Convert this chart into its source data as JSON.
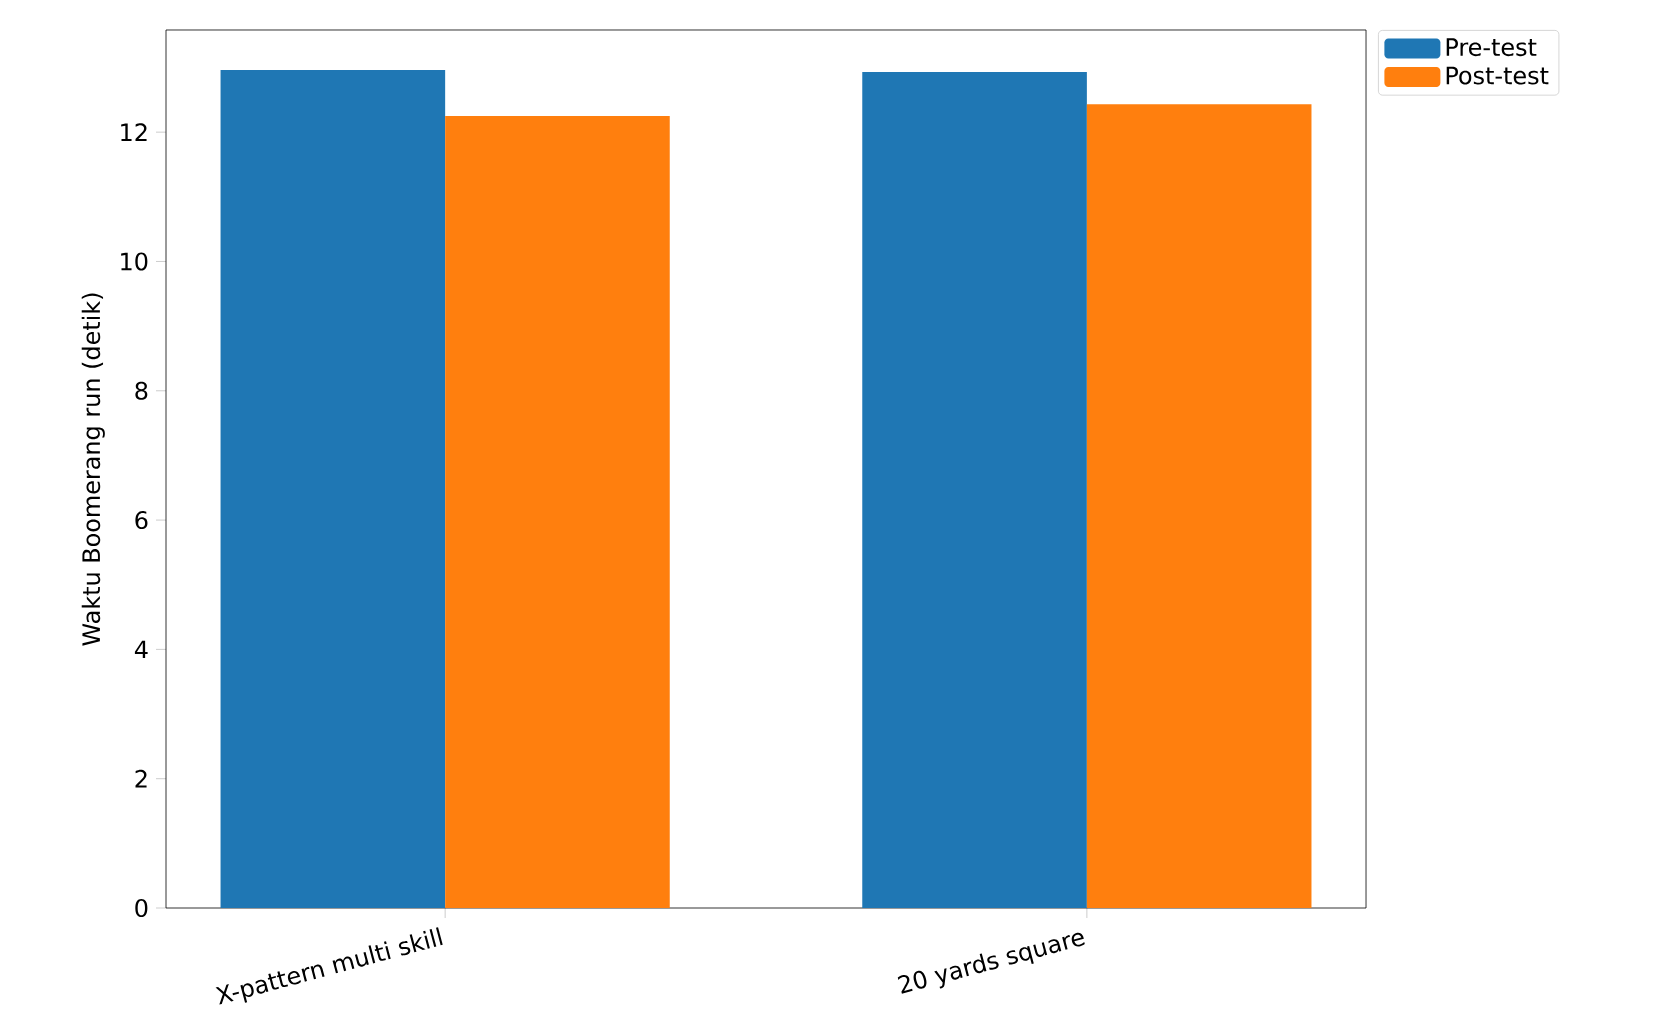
{
  "chart_data": {
    "type": "bar",
    "ylabel": "Waktu Boomerang run (detik)",
    "categories": [
      "X-pattern multi skill",
      "20 yards square"
    ],
    "series": [
      {
        "name": "Pre-test",
        "color": "#1f77b4",
        "values": [
          12.96,
          12.93
        ]
      },
      {
        "name": "Post-test",
        "color": "#ff7f0e",
        "values": [
          12.25,
          12.43
        ]
      }
    ],
    "ylim": [
      0,
      13.58
    ],
    "yticks": [
      0,
      2,
      4,
      6,
      8,
      10,
      12
    ],
    "legend": "top right"
  }
}
